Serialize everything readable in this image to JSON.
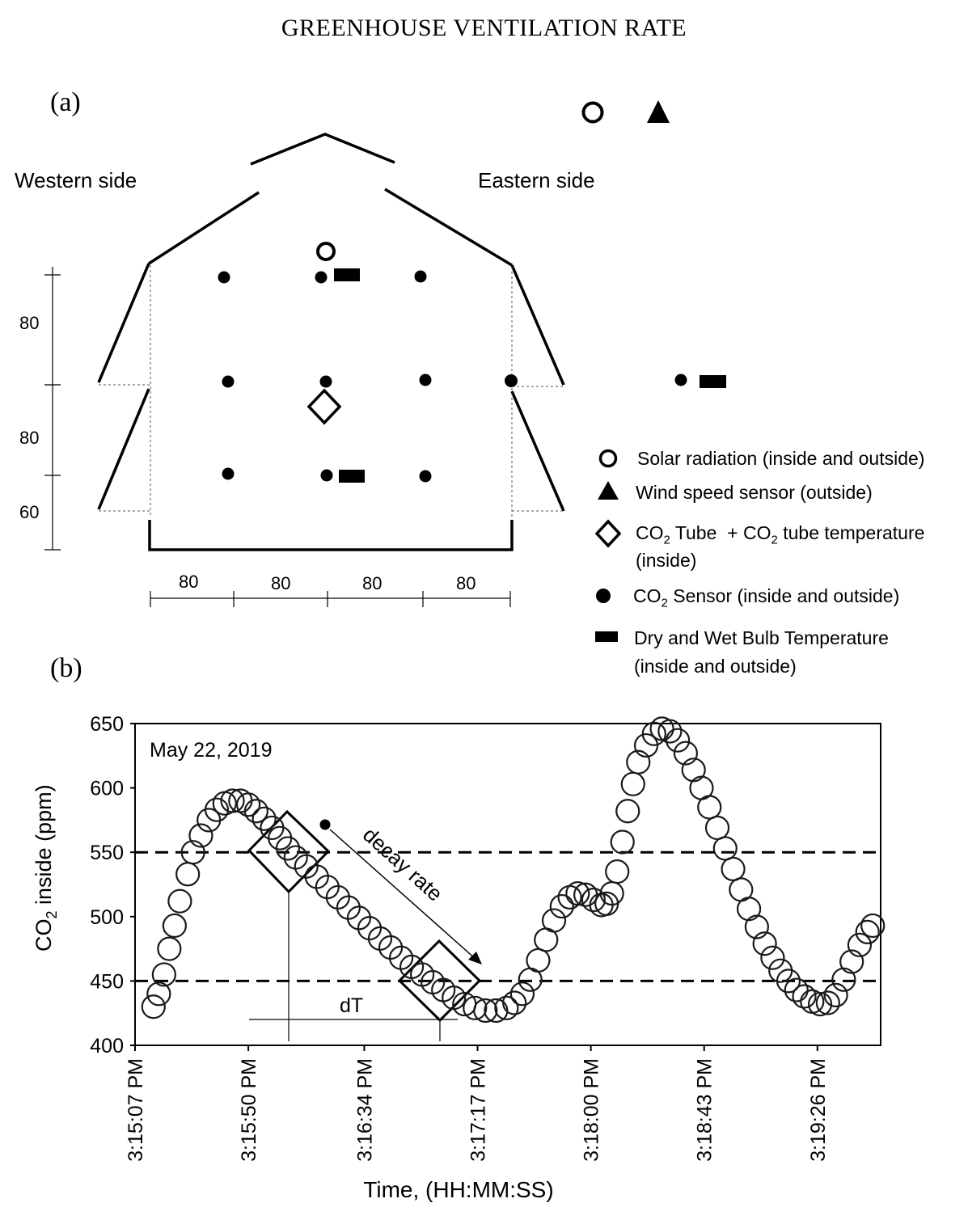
{
  "header": {
    "title": "GREENHOUSE VENTILATION RATE"
  },
  "panel_a": {
    "label": "(a)",
    "western_label": "Western side",
    "eastern_label": "Eastern side",
    "vertical_dims": [
      "80",
      "80",
      "60"
    ],
    "horizontal_dims": [
      "80",
      "80",
      "80",
      "80"
    ],
    "legend": [
      {
        "icon": "open-circle-icon",
        "text": "Solar radiation (inside and outside)"
      },
      {
        "icon": "filled-triangle-icon",
        "text": "Wind speed sensor (outside)"
      },
      {
        "icon": "open-diamond-icon",
        "line1_pre": "CO",
        "line1_sub": "2",
        "line1_mid": " Tube  + CO",
        "line1_sub2": "2",
        "line1_post": " tube temperature",
        "line2": "(inside)"
      },
      {
        "icon": "filled-circle-icon",
        "pre": "CO",
        "sub": "2",
        "post": " Sensor (inside and outside)"
      },
      {
        "icon": "filled-rect-icon",
        "line1": "Dry and Wet Bulb Temperature",
        "line2": "(inside and outside)"
      }
    ]
  },
  "panel_b": {
    "label": "(b)",
    "date_label": "May 22, 2019",
    "annotation_decay": "decay rate",
    "annotation_dT": "dT"
  },
  "chart_data": {
    "type": "scatter",
    "title": "",
    "ylabel_pre": "CO",
    "ylabel_sub": "2",
    "ylabel_post": " inside (ppm)",
    "xlabel": "Time, (HH:MM:SS)",
    "ylim": [
      400,
      650
    ],
    "yticks": [
      400,
      450,
      500,
      550,
      600,
      650
    ],
    "xlim_seconds_labels": [
      "3:15:07 PM",
      "3:19:50 PM"
    ],
    "xticks": [
      "3:15:07 PM",
      "3:15:50 PM",
      "3:16:34 PM",
      "3:17:17 PM",
      "3:18:00 PM",
      "3:18:43 PM",
      "3:19:26 PM"
    ],
    "reference_lines": [
      450,
      550
    ],
    "marker": "open-circle",
    "series": [
      {
        "points": [
          [
            "3:15:14 PM",
            430
          ],
          [
            "3:15:16 PM",
            440
          ],
          [
            "3:15:18 PM",
            455
          ],
          [
            "3:15:20 PM",
            475
          ],
          [
            "3:15:22 PM",
            493
          ],
          [
            "3:15:24 PM",
            512
          ],
          [
            "3:15:27 PM",
            533
          ],
          [
            "3:15:29 PM",
            550
          ],
          [
            "3:15:32 PM",
            563
          ],
          [
            "3:15:35 PM",
            575
          ],
          [
            "3:15:38 PM",
            583
          ],
          [
            "3:15:41 PM",
            588
          ],
          [
            "3:15:44 PM",
            590
          ],
          [
            "3:15:47 PM",
            590
          ],
          [
            "3:15:50 PM",
            587
          ],
          [
            "3:15:53 PM",
            582
          ],
          [
            "3:15:56 PM",
            576
          ],
          [
            "3:15:59 PM",
            569
          ],
          [
            "3:16:02 PM",
            561
          ],
          [
            "3:16:05 PM",
            553
          ],
          [
            "3:16:08 PM",
            546
          ],
          [
            "3:16:12 PM",
            539
          ],
          [
            "3:16:16 PM",
            531
          ],
          [
            "3:16:20 PM",
            523
          ],
          [
            "3:16:24 PM",
            515
          ],
          [
            "3:16:28 PM",
            507
          ],
          [
            "3:16:32 PM",
            499
          ],
          [
            "3:16:36 PM",
            491
          ],
          [
            "3:16:40 PM",
            483
          ],
          [
            "3:16:44 PM",
            476
          ],
          [
            "3:16:48 PM",
            468
          ],
          [
            "3:16:52 PM",
            461
          ],
          [
            "3:16:56 PM",
            455
          ],
          [
            "3:17:00 PM",
            449
          ],
          [
            "3:17:04 PM",
            443
          ],
          [
            "3:17:08 PM",
            437
          ],
          [
            "3:17:12 PM",
            432
          ],
          [
            "3:17:16 PM",
            429
          ],
          [
            "3:17:20 PM",
            427
          ],
          [
            "3:17:24 PM",
            427
          ],
          [
            "3:17:28 PM",
            429
          ],
          [
            "3:17:31 PM",
            433
          ],
          [
            "3:17:34 PM",
            440
          ],
          [
            "3:17:37 PM",
            451
          ],
          [
            "3:17:40 PM",
            466
          ],
          [
            "3:17:43 PM",
            482
          ],
          [
            "3:17:46 PM",
            497
          ],
          [
            "3:17:49 PM",
            508
          ],
          [
            "3:17:52 PM",
            515
          ],
          [
            "3:17:55 PM",
            518
          ],
          [
            "3:17:58 PM",
            517
          ],
          [
            "3:18:01 PM",
            513
          ],
          [
            "3:18:04 PM",
            509
          ],
          [
            "3:18:06 PM",
            510
          ],
          [
            "3:18:08 PM",
            518
          ],
          [
            "3:18:10 PM",
            535
          ],
          [
            "3:18:12 PM",
            558
          ],
          [
            "3:18:14 PM",
            582
          ],
          [
            "3:18:16 PM",
            603
          ],
          [
            "3:18:18 PM",
            620
          ],
          [
            "3:18:21 PM",
            633
          ],
          [
            "3:18:24 PM",
            642
          ],
          [
            "3:18:27 PM",
            646
          ],
          [
            "3:18:30 PM",
            644
          ],
          [
            "3:18:33 PM",
            637
          ],
          [
            "3:18:36 PM",
            627
          ],
          [
            "3:18:39 PM",
            614
          ],
          [
            "3:18:42 PM",
            600
          ],
          [
            "3:18:45 PM",
            585
          ],
          [
            "3:18:48 PM",
            569
          ],
          [
            "3:18:51 PM",
            553
          ],
          [
            "3:18:54 PM",
            537
          ],
          [
            "3:18:57 PM",
            521
          ],
          [
            "3:19:00 PM",
            506
          ],
          [
            "3:19:03 PM",
            492
          ],
          [
            "3:19:06 PM",
            479
          ],
          [
            "3:19:09 PM",
            468
          ],
          [
            "3:19:12 PM",
            458
          ],
          [
            "3:19:15 PM",
            450
          ],
          [
            "3:19:18 PM",
            443
          ],
          [
            "3:19:21 PM",
            438
          ],
          [
            "3:19:24 PM",
            434
          ],
          [
            "3:19:27 PM",
            432
          ],
          [
            "3:19:30 PM",
            433
          ],
          [
            "3:19:33 PM",
            439
          ],
          [
            "3:19:36 PM",
            451
          ],
          [
            "3:19:39 PM",
            465
          ],
          [
            "3:19:42 PM",
            478
          ],
          [
            "3:19:45 PM",
            488
          ],
          [
            "3:19:47 PM",
            493
          ]
        ]
      }
    ],
    "colors": {
      "marker": "#1a1a1a",
      "lines": "#000000"
    }
  }
}
